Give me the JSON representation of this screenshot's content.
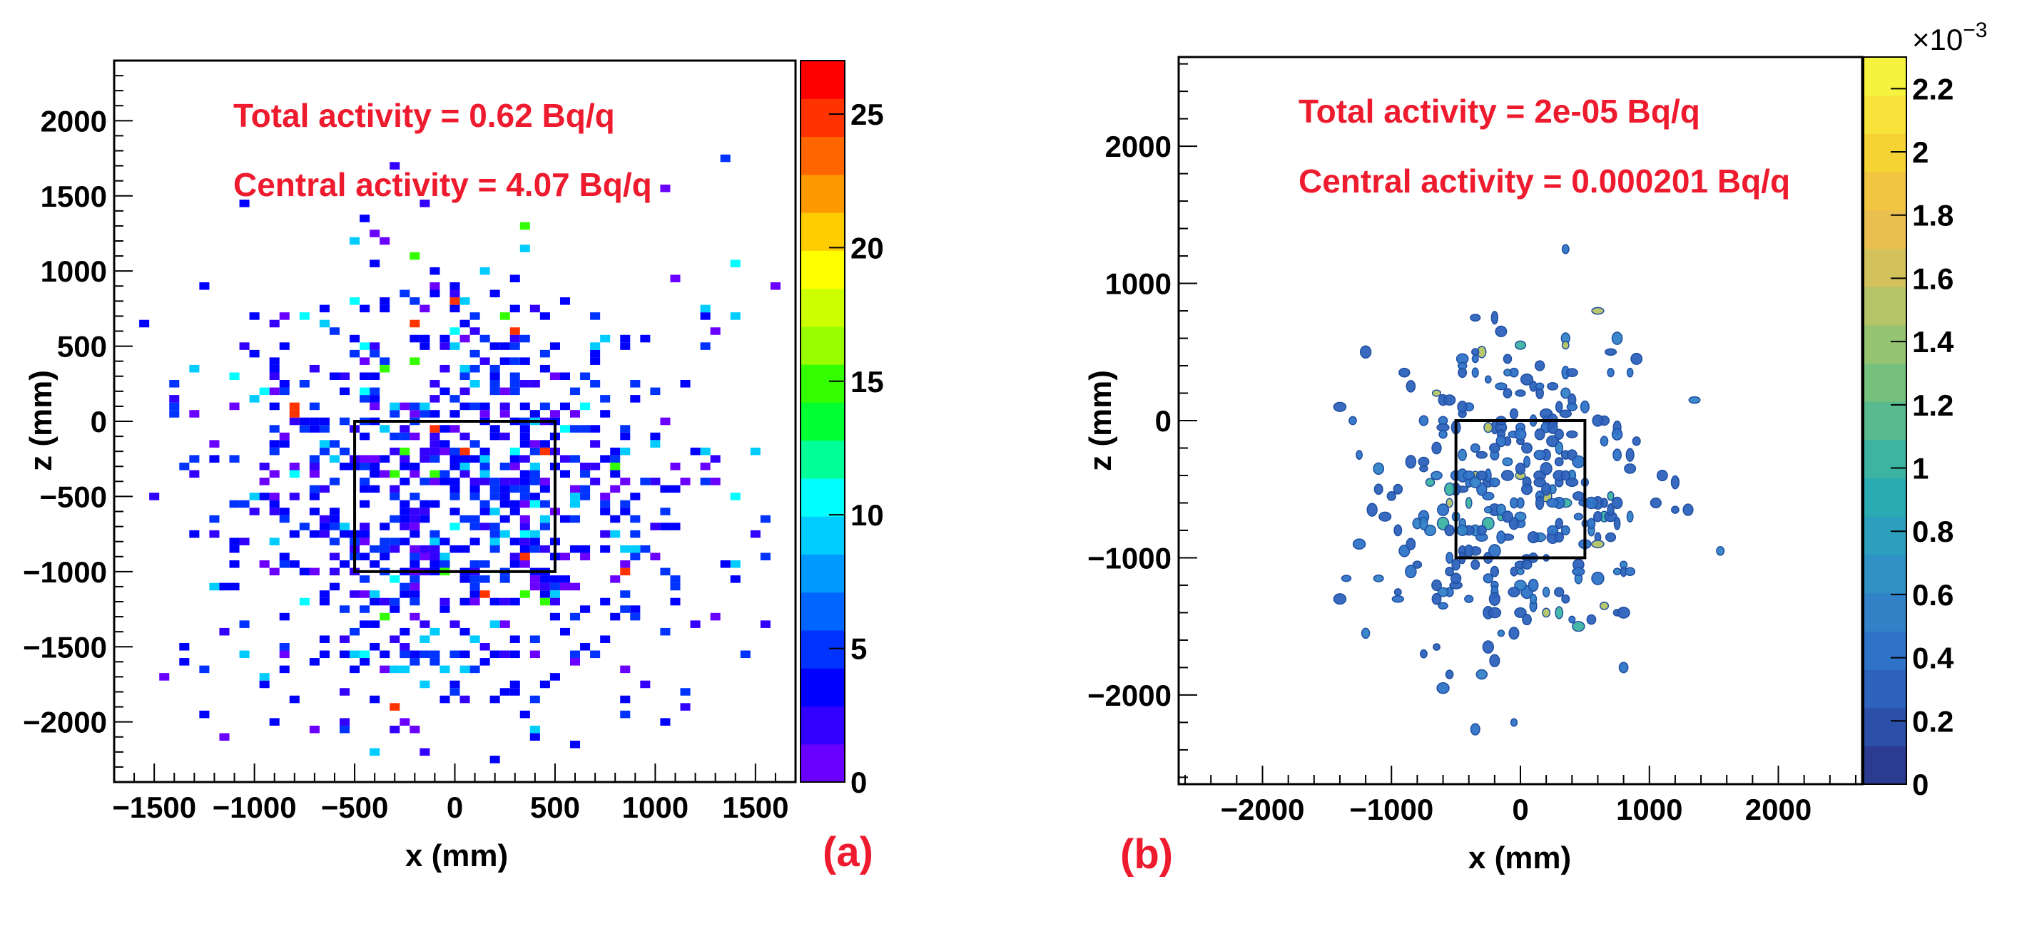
{
  "chart_data": [
    {
      "type": "heatmap",
      "panel_label": "(a)",
      "title": "",
      "xlabel": "x (mm)",
      "ylabel": "z (mm)",
      "xlim": [
        -1700,
        1700
      ],
      "ylim": [
        -2400,
        2400
      ],
      "x_ticks": [
        -1500,
        -1000,
        -500,
        0,
        500,
        1000,
        1500
      ],
      "x_tick_labels": [
        "−1500",
        "−1000",
        "−500",
        "0",
        "500",
        "1000",
        "1500"
      ],
      "y_ticks": [
        -2000,
        -1500,
        -1000,
        -500,
        0,
        500,
        1000,
        1500,
        2000
      ],
      "y_tick_labels": [
        "−2000",
        "−1500",
        "−1000",
        "−500",
        "0",
        "500",
        "1000",
        "1500",
        "2000"
      ],
      "annotations": [
        "Total activity = 0.62 Bq/q",
        "Central activity = 4.07 Bq/q"
      ],
      "central_region": {
        "x": [
          -500,
          500
        ],
        "z": [
          -1000,
          0
        ]
      },
      "colorbar": {
        "min": 0,
        "max": 27,
        "ticks": [
          0,
          5,
          10,
          15,
          20,
          25
        ],
        "tick_labels": [
          "0",
          "5",
          "10",
          "15",
          "20",
          "25"
        ],
        "colors": [
          "#6a00ff",
          "#3300ff",
          "#0000ff",
          "#0033ff",
          "#0066ff",
          "#0099ff",
          "#00ccff",
          "#00ffff",
          "#00ff99",
          "#00ff33",
          "#33ff00",
          "#99ff00",
          "#ccff00",
          "#ffff00",
          "#ffcc00",
          "#ff9900",
          "#ff6600",
          "#ff3300",
          "#ff0000"
        ]
      },
      "grid": false,
      "legend": "none"
    },
    {
      "type": "heatmap",
      "panel_label": "(b)",
      "title": "",
      "xlabel": "x (mm)",
      "ylabel": "z (mm)",
      "xlim": [
        -2650,
        2650
      ],
      "ylim": [
        -2650,
        2650
      ],
      "x_ticks": [
        -2000,
        -1000,
        0,
        1000,
        2000
      ],
      "x_tick_labels": [
        "−2000",
        "−1000",
        "0",
        "1000",
        "2000"
      ],
      "y_ticks": [
        -2000,
        -1000,
        0,
        1000,
        2000
      ],
      "y_tick_labels": [
        "−2000",
        "−1000",
        "0",
        "1000",
        "2000"
      ],
      "annotations": [
        "Total activity = 2e-05 Bq/q",
        "Central activity = 0.000201 Bq/q"
      ],
      "central_region": {
        "x": [
          -500,
          500
        ],
        "z": [
          -1000,
          0
        ]
      },
      "colorbar": {
        "min": 0,
        "max": 0.0023,
        "ticks": [
          0,
          0.0002,
          0.0004,
          0.0006,
          0.0008,
          0.001,
          0.0012,
          0.0014,
          0.0016,
          0.0018,
          0.002,
          0.0022
        ],
        "tick_labels": [
          "0",
          "0.2",
          "0.4",
          "0.6",
          "0.8",
          "1",
          "1.2",
          "1.4",
          "1.6",
          "1.8",
          "2",
          "2.2"
        ],
        "exponent_label": "×10",
        "exponent": "−3",
        "colors": [
          "#2b3b8f",
          "#2c4fa8",
          "#2d62bd",
          "#2f73c8",
          "#3282c8",
          "#2f91c4",
          "#2c9fbe",
          "#2aabb2",
          "#3db4a2",
          "#58bb8f",
          "#76c07e",
          "#94c470",
          "#b4c466",
          "#d3c25c",
          "#e9c04f",
          "#f2c540",
          "#f6d334",
          "#f8e33a",
          "#f5f33f"
        ]
      },
      "grid": false,
      "legend": "none"
    }
  ]
}
